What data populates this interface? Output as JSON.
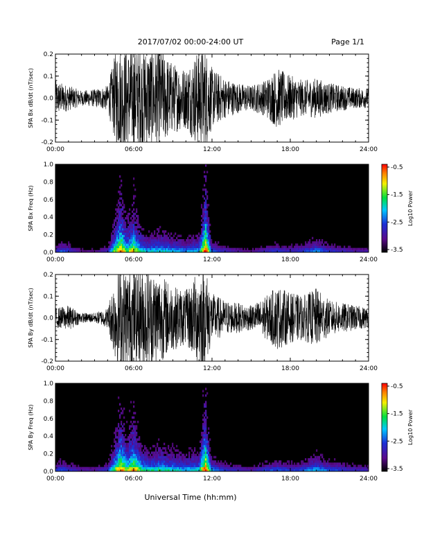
{
  "header": {
    "title": "2017/07/02  00:00-24:00 UT",
    "page": "Page 1/1"
  },
  "footer": {
    "xlabel": "Universal Time (hh:mm)"
  },
  "colorbar": {
    "label": "Log10 Power",
    "ticks": [
      "-0.5",
      "-1.5",
      "-2.5",
      "-3.5"
    ],
    "range": [
      -3.5,
      -0.5
    ]
  },
  "chart_data": [
    {
      "type": "line",
      "ylabel": "SPA Bx dB/dt (nT/sec)",
      "xticks": [
        "00:00",
        "06:00",
        "12:00",
        "18:00",
        "24:00"
      ],
      "xlim_hours": [
        0,
        24
      ],
      "yticks": [
        "0.2",
        "0.1",
        "0.0",
        "-0.1",
        "-0.2"
      ],
      "ylim": [
        -0.2,
        0.2
      ],
      "series": [
        {
          "x_hours": [
            0,
            1,
            2,
            3,
            4,
            4.7,
            5,
            6,
            7,
            8,
            9,
            10,
            11,
            11.5,
            12,
            13,
            14,
            15,
            16,
            17,
            18,
            19,
            20,
            21,
            22,
            23,
            24
          ],
          "amplitude": [
            0.07,
            0.05,
            0.03,
            0.035,
            0.05,
            0.2,
            0.2,
            0.2,
            0.2,
            0.2,
            0.14,
            0.12,
            0.2,
            0.2,
            0.12,
            0.08,
            0.06,
            0.05,
            0.07,
            0.12,
            0.09,
            0.07,
            0.08,
            0.06,
            0.05,
            0.04,
            0.04
          ]
        }
      ]
    },
    {
      "type": "heatmap",
      "ylabel": "SPA Bx Freq (Hz)",
      "xticks": [
        "00:00",
        "06:00",
        "12:00",
        "18:00",
        "24:00"
      ],
      "xlim_hours": [
        0,
        24
      ],
      "yticks": [
        "1.0",
        "0.8",
        "0.6",
        "0.4",
        "0.2",
        "0.0"
      ],
      "ylim": [
        0,
        1.0
      ],
      "activity_hours": [
        0,
        0.5,
        1,
        2,
        3,
        4,
        4.5,
        5,
        5.5,
        6,
        6.5,
        7,
        8,
        9,
        10,
        11,
        11.5,
        12,
        13,
        14,
        15,
        16,
        17,
        18,
        19,
        20,
        21,
        22,
        23,
        24
      ],
      "activity_level": [
        0.25,
        0.35,
        0.3,
        0.15,
        0.15,
        0.25,
        0.6,
        0.85,
        0.6,
        0.75,
        0.55,
        0.45,
        0.5,
        0.45,
        0.4,
        0.45,
        0.95,
        0.35,
        0.25,
        0.2,
        0.15,
        0.25,
        0.3,
        0.25,
        0.3,
        0.4,
        0.3,
        0.25,
        0.2,
        0.2
      ]
    },
    {
      "type": "line",
      "ylabel": "SPA By dB/dt (nT/sec)",
      "xticks": [
        "00:00",
        "06:00",
        "12:00",
        "18:00",
        "24:00"
      ],
      "xlim_hours": [
        0,
        24
      ],
      "yticks": [
        "0.2",
        "0.1",
        "0.0",
        "-0.1",
        "-0.2"
      ],
      "ylim": [
        -0.2,
        0.2
      ],
      "series": [
        {
          "x_hours": [
            0,
            1,
            2,
            3,
            4,
            4.7,
            5,
            6,
            7,
            8,
            9,
            10,
            11,
            11.5,
            12,
            13,
            14,
            15,
            16,
            17,
            18,
            19,
            20,
            21,
            22,
            23,
            24
          ],
          "amplitude": [
            0.04,
            0.05,
            0.02,
            0.02,
            0.04,
            0.2,
            0.2,
            0.2,
            0.2,
            0.18,
            0.13,
            0.11,
            0.2,
            0.2,
            0.1,
            0.07,
            0.06,
            0.05,
            0.08,
            0.13,
            0.1,
            0.09,
            0.12,
            0.07,
            0.06,
            0.05,
            0.04
          ]
        }
      ]
    },
    {
      "type": "heatmap",
      "ylabel": "SPA By Freq (Hz)",
      "xticks": [
        "00:00",
        "06:00",
        "12:00",
        "18:00",
        "24:00"
      ],
      "xlim_hours": [
        0,
        24
      ],
      "yticks": [
        "1.0",
        "0.8",
        "0.6",
        "0.4",
        "0.2",
        "0.0"
      ],
      "ylim": [
        0,
        1.0
      ],
      "activity_hours": [
        0,
        0.5,
        1,
        2,
        3,
        4,
        4.5,
        5,
        5.5,
        6,
        6.5,
        7,
        8,
        9,
        10,
        11,
        11.5,
        12,
        13,
        14,
        15,
        16,
        17,
        18,
        19,
        20,
        21,
        22,
        23,
        24
      ],
      "activity_level": [
        0.3,
        0.35,
        0.3,
        0.2,
        0.2,
        0.3,
        0.6,
        0.85,
        0.65,
        0.8,
        0.6,
        0.5,
        0.55,
        0.5,
        0.45,
        0.5,
        0.95,
        0.4,
        0.3,
        0.25,
        0.2,
        0.3,
        0.35,
        0.3,
        0.35,
        0.45,
        0.35,
        0.3,
        0.25,
        0.25
      ]
    }
  ]
}
